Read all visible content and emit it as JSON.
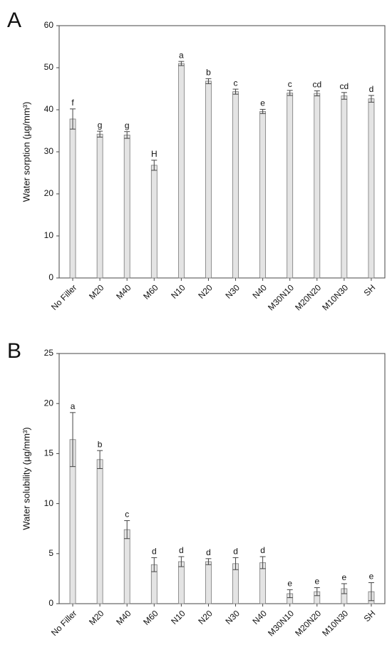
{
  "chart_data": [
    {
      "type": "bar",
      "panel": "A",
      "y_label": "Water sorption (µg/mm³)",
      "categories": [
        "No Filler",
        "M20",
        "M40",
        "M60",
        "N10",
        "N20",
        "N30",
        "N40",
        "M30N10",
        "M20N20",
        "M10N30",
        "SH"
      ],
      "values": [
        37.8,
        34.2,
        34.0,
        26.8,
        51.0,
        46.8,
        44.3,
        39.6,
        44.0,
        43.9,
        43.3,
        42.6
      ],
      "errors": [
        2.4,
        0.7,
        0.8,
        1.2,
        0.5,
        0.6,
        0.6,
        0.5,
        0.6,
        0.6,
        0.8,
        0.8
      ],
      "annotations": [
        "f",
        "g",
        "g",
        "H",
        "a",
        "b",
        "c",
        "e",
        "c",
        "cd",
        "cd",
        "d"
      ],
      "color": "#e4e4e4",
      "ylim": [
        0,
        60
      ],
      "yticks": [
        0,
        10,
        20,
        30,
        40,
        50,
        60
      ]
    },
    {
      "type": "bar",
      "panel": "B",
      "y_label": "Water solubility (µg/mm³)",
      "categories": [
        "No Filler",
        "M20",
        "M40",
        "M60",
        "N10",
        "N20",
        "N30",
        "N40",
        "M30N10",
        "M20N20",
        "M10N30",
        "SH"
      ],
      "values": [
        16.4,
        14.4,
        7.4,
        3.9,
        4.2,
        4.2,
        4.0,
        4.1,
        1.0,
        1.2,
        1.5,
        1.2
      ],
      "errors": [
        2.7,
        0.9,
        0.9,
        0.7,
        0.5,
        0.3,
        0.6,
        0.6,
        0.4,
        0.4,
        0.5,
        0.9
      ],
      "annotations": [
        "a",
        "b",
        "c",
        "d",
        "d",
        "d",
        "d",
        "d",
        "e",
        "e",
        "e",
        "e"
      ],
      "color": "#e4e4e4",
      "ylim": [
        0,
        25
      ],
      "yticks": [
        0,
        5,
        10,
        15,
        20,
        25
      ]
    }
  ]
}
